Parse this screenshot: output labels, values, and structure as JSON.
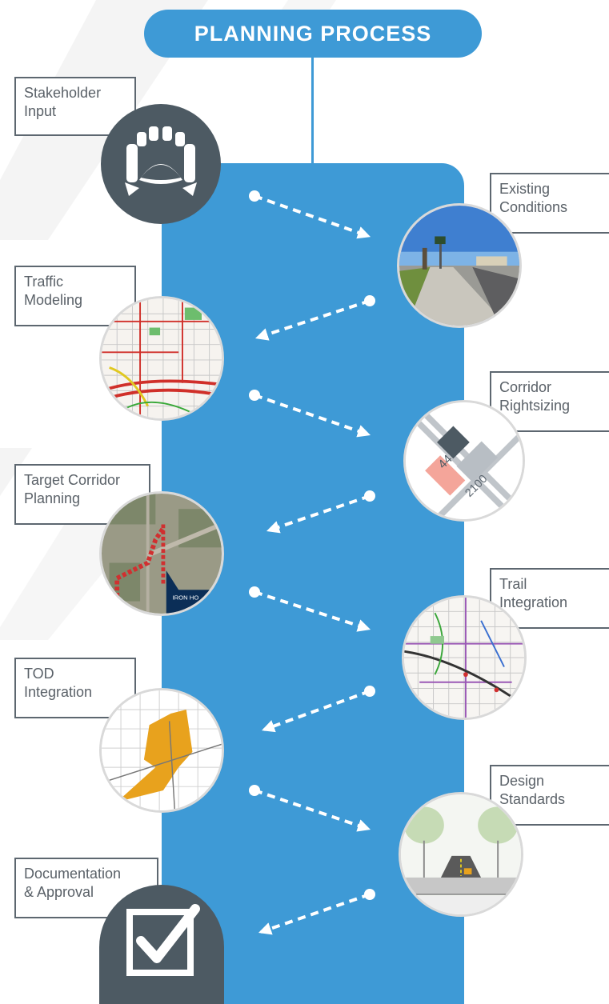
{
  "title": "PLANNING PROCESS",
  "colors": {
    "accent_blue": "#3e9ad6",
    "dark_circle": "#4d5a63",
    "label_border": "#5d6770",
    "label_text": "#5a6168",
    "arrow": "#ffffff"
  },
  "steps": [
    {
      "label": "Stakeholder\nInput",
      "icon": "conference-table-icon"
    },
    {
      "label": "Existing\nConditions",
      "icon": "street-photo"
    },
    {
      "label": "Traffic\nModeling",
      "icon": "traffic-map"
    },
    {
      "label": "Corridor\nRightsizing",
      "icon": "parcel-diagram",
      "parcel_labels": [
        "44",
        "2100"
      ]
    },
    {
      "label": "Target Corridor\nPlanning",
      "icon": "aerial-map",
      "map_label": "IRON HO"
    },
    {
      "label": "Trail\nIntegration",
      "icon": "trail-map"
    },
    {
      "label": "TOD\nIntegration",
      "icon": "tod-map"
    },
    {
      "label": "Design\nStandards",
      "icon": "street-section"
    },
    {
      "label": "Documentation\n& Approval",
      "icon": "checkbox-icon"
    }
  ]
}
